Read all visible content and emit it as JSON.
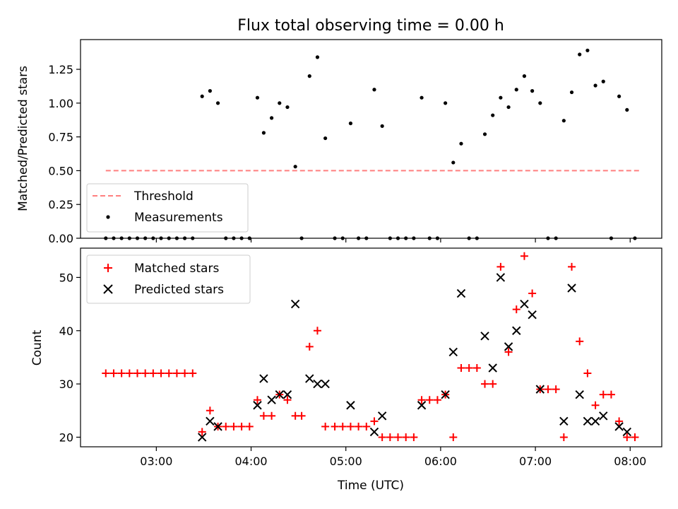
{
  "figure": {
    "title": "Flux total observing time = 0.00 h",
    "colors": {
      "threshold": "#ff7f7f",
      "measurements": "#000000",
      "matched": "#ff0000",
      "predicted": "#000000",
      "axes": "#000000"
    }
  },
  "chart_data": [
    {
      "type": "scatter",
      "ylabel": "Matched/Predicted stars",
      "xlabel": "",
      "x_units": "UTC time (HH:MM)",
      "xlim": [
        "02:12",
        "08:20"
      ],
      "ylim": [
        0,
        1.47
      ],
      "yticks": [
        "0.00",
        "0.25",
        "0.50",
        "0.75",
        "1.00",
        "1.25"
      ],
      "xtick_labels_shown": false,
      "grid": false,
      "legend": {
        "placement": "lower-left",
        "entries": [
          "Threshold",
          "Measurements"
        ]
      },
      "series": [
        {
          "name": "Threshold",
          "kind": "dashed-line",
          "points": [
            [
              "02:28",
              0.5
            ],
            [
              "08:06",
              0.5
            ]
          ]
        },
        {
          "name": "Measurements",
          "kind": "dots",
          "points": [
            [
              "02:28",
              0.0
            ],
            [
              "02:33",
              0.0
            ],
            [
              "02:38",
              0.0
            ],
            [
              "02:43",
              0.0
            ],
            [
              "02:48",
              0.0
            ],
            [
              "02:53",
              0.0
            ],
            [
              "02:58",
              0.0
            ],
            [
              "03:03",
              0.0
            ],
            [
              "03:08",
              0.0
            ],
            [
              "03:13",
              0.0
            ],
            [
              "03:18",
              0.0
            ],
            [
              "03:23",
              0.0
            ],
            [
              "03:29",
              1.05
            ],
            [
              "03:34",
              1.09
            ],
            [
              "03:39",
              1.0
            ],
            [
              "03:44",
              0.0
            ],
            [
              "03:49",
              0.0
            ],
            [
              "03:54",
              0.0
            ],
            [
              "03:59",
              0.0
            ],
            [
              "04:04",
              1.04
            ],
            [
              "04:08",
              0.78
            ],
            [
              "04:13",
              0.89
            ],
            [
              "04:18",
              1.0
            ],
            [
              "04:23",
              0.97
            ],
            [
              "04:28",
              0.53
            ],
            [
              "04:32",
              0.0
            ],
            [
              "04:37",
              1.2
            ],
            [
              "04:42",
              1.34
            ],
            [
              "04:47",
              0.74
            ],
            [
              "04:53",
              0.0
            ],
            [
              "04:58",
              0.0
            ],
            [
              "05:03",
              0.85
            ],
            [
              "05:08",
              0.0
            ],
            [
              "05:13",
              0.0
            ],
            [
              "05:18",
              1.1
            ],
            [
              "05:23",
              0.83
            ],
            [
              "05:28",
              0.0
            ],
            [
              "05:33",
              0.0
            ],
            [
              "05:38",
              0.0
            ],
            [
              "05:43",
              0.0
            ],
            [
              "05:48",
              1.04
            ],
            [
              "05:53",
              0.0
            ],
            [
              "05:58",
              0.0
            ],
            [
              "06:03",
              1.0
            ],
            [
              "06:08",
              0.56
            ],
            [
              "06:13",
              0.7
            ],
            [
              "06:18",
              0.0
            ],
            [
              "06:23",
              0.0
            ],
            [
              "06:28",
              0.77
            ],
            [
              "06:33",
              0.91
            ],
            [
              "06:38",
              1.04
            ],
            [
              "06:43",
              0.97
            ],
            [
              "06:48",
              1.1
            ],
            [
              "06:53",
              1.2
            ],
            [
              "06:58",
              1.09
            ],
            [
              "07:03",
              1.0
            ],
            [
              "07:08",
              0.0
            ],
            [
              "07:13",
              0.0
            ],
            [
              "07:18",
              0.87
            ],
            [
              "07:23",
              1.08
            ],
            [
              "07:28",
              1.36
            ],
            [
              "07:33",
              1.39
            ],
            [
              "07:38",
              1.13
            ],
            [
              "07:43",
              1.16
            ],
            [
              "07:48",
              0.0
            ],
            [
              "07:53",
              1.05
            ],
            [
              "07:58",
              0.95
            ],
            [
              "08:03",
              0.0
            ]
          ]
        }
      ]
    },
    {
      "type": "scatter",
      "ylabel": "Count",
      "xlabel": "Time (UTC)",
      "x_units": "UTC time (HH:MM)",
      "xlim": [
        "02:12",
        "08:20"
      ],
      "ylim": [
        18.2,
        55.5
      ],
      "xticks": [
        "03:00",
        "04:00",
        "05:00",
        "06:00",
        "07:00",
        "08:00"
      ],
      "yticks": [
        "20",
        "30",
        "40",
        "50"
      ],
      "grid": false,
      "legend": {
        "placement": "upper-left",
        "entries": [
          "Matched stars",
          "Predicted stars"
        ]
      },
      "series": [
        {
          "name": "Matched stars",
          "marker": "plus",
          "points": [
            [
              "02:28",
              32
            ],
            [
              "02:33",
              32
            ],
            [
              "02:38",
              32
            ],
            [
              "02:43",
              32
            ],
            [
              "02:48",
              32
            ],
            [
              "02:53",
              32
            ],
            [
              "02:58",
              32
            ],
            [
              "03:03",
              32
            ],
            [
              "03:08",
              32
            ],
            [
              "03:13",
              32
            ],
            [
              "03:18",
              32
            ],
            [
              "03:23",
              32
            ],
            [
              "03:29",
              21
            ],
            [
              "03:34",
              25
            ],
            [
              "03:39",
              22
            ],
            [
              "03:44",
              22
            ],
            [
              "03:49",
              22
            ],
            [
              "03:54",
              22
            ],
            [
              "03:59",
              22
            ],
            [
              "04:04",
              27
            ],
            [
              "04:08",
              24
            ],
            [
              "04:13",
              24
            ],
            [
              "04:18",
              28
            ],
            [
              "04:23",
              27
            ],
            [
              "04:28",
              24
            ],
            [
              "04:32",
              24
            ],
            [
              "04:37",
              37
            ],
            [
              "04:42",
              40
            ],
            [
              "04:47",
              22
            ],
            [
              "04:53",
              22
            ],
            [
              "04:58",
              22
            ],
            [
              "05:03",
              22
            ],
            [
              "05:08",
              22
            ],
            [
              "05:13",
              22
            ],
            [
              "05:18",
              23
            ],
            [
              "05:23",
              20
            ],
            [
              "05:28",
              20
            ],
            [
              "05:33",
              20
            ],
            [
              "05:38",
              20
            ],
            [
              "05:43",
              20
            ],
            [
              "05:48",
              27
            ],
            [
              "05:53",
              27
            ],
            [
              "05:58",
              27
            ],
            [
              "06:03",
              28
            ],
            [
              "06:08",
              20
            ],
            [
              "06:13",
              33
            ],
            [
              "06:18",
              33
            ],
            [
              "06:23",
              33
            ],
            [
              "06:28",
              30
            ],
            [
              "06:33",
              30
            ],
            [
              "06:38",
              52
            ],
            [
              "06:43",
              36
            ],
            [
              "06:48",
              44
            ],
            [
              "06:53",
              54
            ],
            [
              "06:58",
              47
            ],
            [
              "07:03",
              29
            ],
            [
              "07:08",
              29
            ],
            [
              "07:13",
              29
            ],
            [
              "07:18",
              20
            ],
            [
              "07:23",
              52
            ],
            [
              "07:28",
              38
            ],
            [
              "07:33",
              32
            ],
            [
              "07:38",
              26
            ],
            [
              "07:43",
              28
            ],
            [
              "07:48",
              28
            ],
            [
              "07:53",
              23
            ],
            [
              "07:58",
              20
            ],
            [
              "08:03",
              20
            ]
          ]
        },
        {
          "name": "Predicted stars",
          "marker": "x",
          "points": [
            [
              "03:29",
              20
            ],
            [
              "03:34",
              23
            ],
            [
              "03:39",
              22
            ],
            [
              "04:04",
              26
            ],
            [
              "04:08",
              31
            ],
            [
              "04:13",
              27
            ],
            [
              "04:18",
              28
            ],
            [
              "04:23",
              28
            ],
            [
              "04:28",
              45
            ],
            [
              "04:37",
              31
            ],
            [
              "04:42",
              30
            ],
            [
              "04:47",
              30
            ],
            [
              "05:03",
              26
            ],
            [
              "05:18",
              21
            ],
            [
              "05:23",
              24
            ],
            [
              "05:48",
              26
            ],
            [
              "06:03",
              28
            ],
            [
              "06:08",
              36
            ],
            [
              "06:13",
              47
            ],
            [
              "06:28",
              39
            ],
            [
              "06:33",
              33
            ],
            [
              "06:38",
              50
            ],
            [
              "06:43",
              37
            ],
            [
              "06:48",
              40
            ],
            [
              "06:53",
              45
            ],
            [
              "06:58",
              43
            ],
            [
              "07:03",
              29
            ],
            [
              "07:18",
              23
            ],
            [
              "07:23",
              48
            ],
            [
              "07:28",
              28
            ],
            [
              "07:33",
              23
            ],
            [
              "07:38",
              23
            ],
            [
              "07:43",
              24
            ],
            [
              "07:53",
              22
            ],
            [
              "07:58",
              21
            ]
          ]
        }
      ]
    }
  ]
}
